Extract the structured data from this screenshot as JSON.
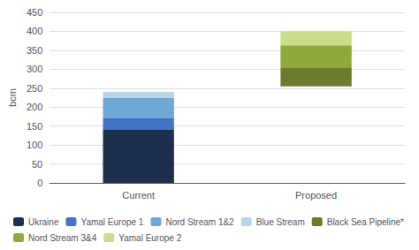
{
  "chart_data": {
    "type": "bar",
    "stacked": true,
    "categories": [
      "Current",
      "Proposed"
    ],
    "base": [
      0,
      255
    ],
    "series": [
      {
        "name": "Ukraine",
        "values": [
          140,
          0
        ],
        "color": "#1c2f4e"
      },
      {
        "name": "Yamal Europe 1",
        "values": [
          30,
          0
        ],
        "color": "#4472c4"
      },
      {
        "name": "Nord Stream 1&2",
        "values": [
          55,
          0
        ],
        "color": "#6fa8d5"
      },
      {
        "name": "Blue Stream",
        "values": [
          15,
          0
        ],
        "color": "#b8d4e8"
      },
      {
        "name": "Black Sea Pipeline*",
        "values": [
          0,
          50
        ],
        "color": "#6b7c2d"
      },
      {
        "name": "Nord Stream 3&4",
        "values": [
          0,
          58
        ],
        "color": "#8faa3a"
      },
      {
        "name": "Yamal Europe 2",
        "values": [
          0,
          37
        ],
        "color": "#c8dc8c"
      }
    ],
    "ylabel": "bcm",
    "ylim": [
      0,
      450
    ],
    "yticks": [
      0,
      50,
      100,
      150,
      200,
      250,
      300,
      350,
      400,
      450
    ],
    "grid": true,
    "legend": "bottom"
  }
}
